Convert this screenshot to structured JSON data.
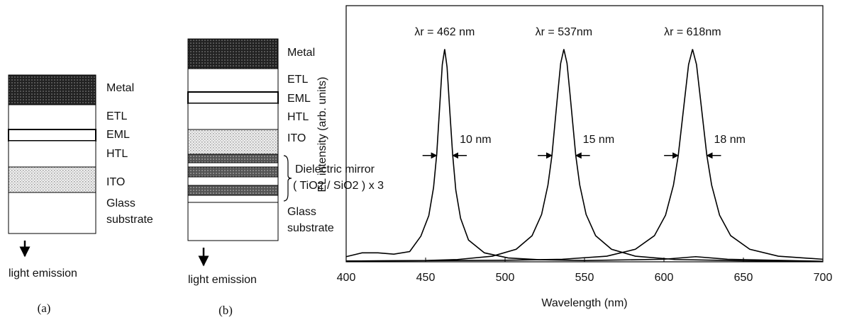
{
  "diagram_a": {
    "layers": [
      "Metal",
      "ETL",
      "EML",
      "HTL",
      "ITO",
      "Glass substrate"
    ],
    "arrow_label": "light emission",
    "caption": "(a)"
  },
  "diagram_b": {
    "layers": [
      "Metal",
      "ETL",
      "EML",
      "HTL",
      "ITO",
      "Glass substrate"
    ],
    "mirror_label": "Dielectric mirror",
    "mirror_formula": "( TiO2 / SiO2 ) x 3",
    "arrow_label": "light emission",
    "caption": "(b)"
  },
  "chart_data": {
    "type": "line",
    "xlabel": "Wavelength (nm)",
    "ylabel": "EL intensity (arb. units)",
    "xlim": [
      400,
      700
    ],
    "xticks": [
      400,
      450,
      500,
      550,
      600,
      650,
      700
    ],
    "ylim": [
      0,
      1
    ],
    "series": [
      {
        "color": "#000000",
        "x": [
          400,
          410,
          420,
          430,
          440,
          447,
          452,
          455,
          457,
          459,
          460.5,
          462,
          463.5,
          465,
          467,
          469,
          472,
          477,
          487,
          502,
          522,
          550,
          600,
          620,
          640,
          700
        ],
        "values": [
          0.02,
          0.035,
          0.035,
          0.03,
          0.04,
          0.1,
          0.18,
          0.29,
          0.42,
          0.62,
          0.77,
          0.83,
          0.76,
          0.61,
          0.42,
          0.28,
          0.17,
          0.085,
          0.035,
          0.015,
          0.008,
          0.005,
          0.01,
          0.02,
          0.01,
          0.002
        ]
      },
      {
        "color": "#000000",
        "x": [
          400,
          450,
          470,
          492,
          507,
          517,
          523,
          527,
          529.5,
          533,
          535,
          537,
          539,
          541,
          544.5,
          547,
          551,
          557,
          567,
          582,
          607,
          650,
          700
        ],
        "values": [
          0.003,
          0.005,
          0.009,
          0.022,
          0.049,
          0.102,
          0.185,
          0.3,
          0.415,
          0.647,
          0.775,
          0.83,
          0.775,
          0.647,
          0.415,
          0.3,
          0.185,
          0.102,
          0.049,
          0.022,
          0.009,
          0.004,
          0.002
        ]
      },
      {
        "color": "#000000",
        "x": [
          400,
          500,
          536,
          564,
          582,
          594,
          601,
          606,
          609,
          613,
          615.5,
          618,
          620.5,
          623,
          627,
          630,
          635,
          642,
          654,
          672,
          700
        ],
        "values": [
          0.003,
          0.006,
          0.01,
          0.022,
          0.049,
          0.102,
          0.182,
          0.3,
          0.415,
          0.634,
          0.77,
          0.83,
          0.77,
          0.634,
          0.415,
          0.3,
          0.182,
          0.102,
          0.049,
          0.022,
          0.01
        ]
      }
    ],
    "annotations": [
      {
        "text": "λr = 462 nm",
        "x": 462
      },
      {
        "text": "λr = 537nm",
        "x": 537
      },
      {
        "text": "λr = 618nm",
        "x": 618
      }
    ],
    "fwhm": [
      {
        "text": "10 nm",
        "x": 462,
        "width": 10,
        "y": 0.415
      },
      {
        "text": "15 nm",
        "x": 537,
        "width": 15,
        "y": 0.415
      },
      {
        "text": "18 nm",
        "x": 618,
        "width": 18,
        "y": 0.415
      }
    ]
  }
}
